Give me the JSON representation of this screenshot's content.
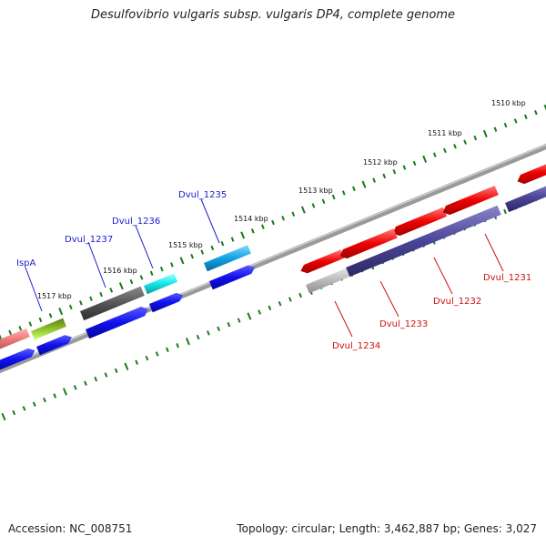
{
  "title": "Desulfovibrio vulgaris subsp. vulgaris DP4, complete genome",
  "footer": {
    "accession": "Accession: NC_008751",
    "stats": "Topology: circular; Length: 3,462,887 bp; Genes: 3,027"
  },
  "colors": {
    "forward_label": "#1a1acc",
    "reverse_label": "#cc1111",
    "tick": "#1a7a1a",
    "backbone": "#888888"
  },
  "scale_ticks": [
    "1510 kbp",
    "1511 kbp",
    "1512 kbp",
    "1513 kbp",
    "1514 kbp",
    "1515 kbp",
    "1516 kbp",
    "1517 kbp"
  ],
  "gene_labels": {
    "forward": [
      "IspA",
      "Dvul_1237",
      "Dvul_1236",
      "Dvul_1235"
    ],
    "reverse": [
      "Dvul_1231",
      "Dvul_1232",
      "Dvul_1233",
      "Dvul_1234"
    ]
  }
}
